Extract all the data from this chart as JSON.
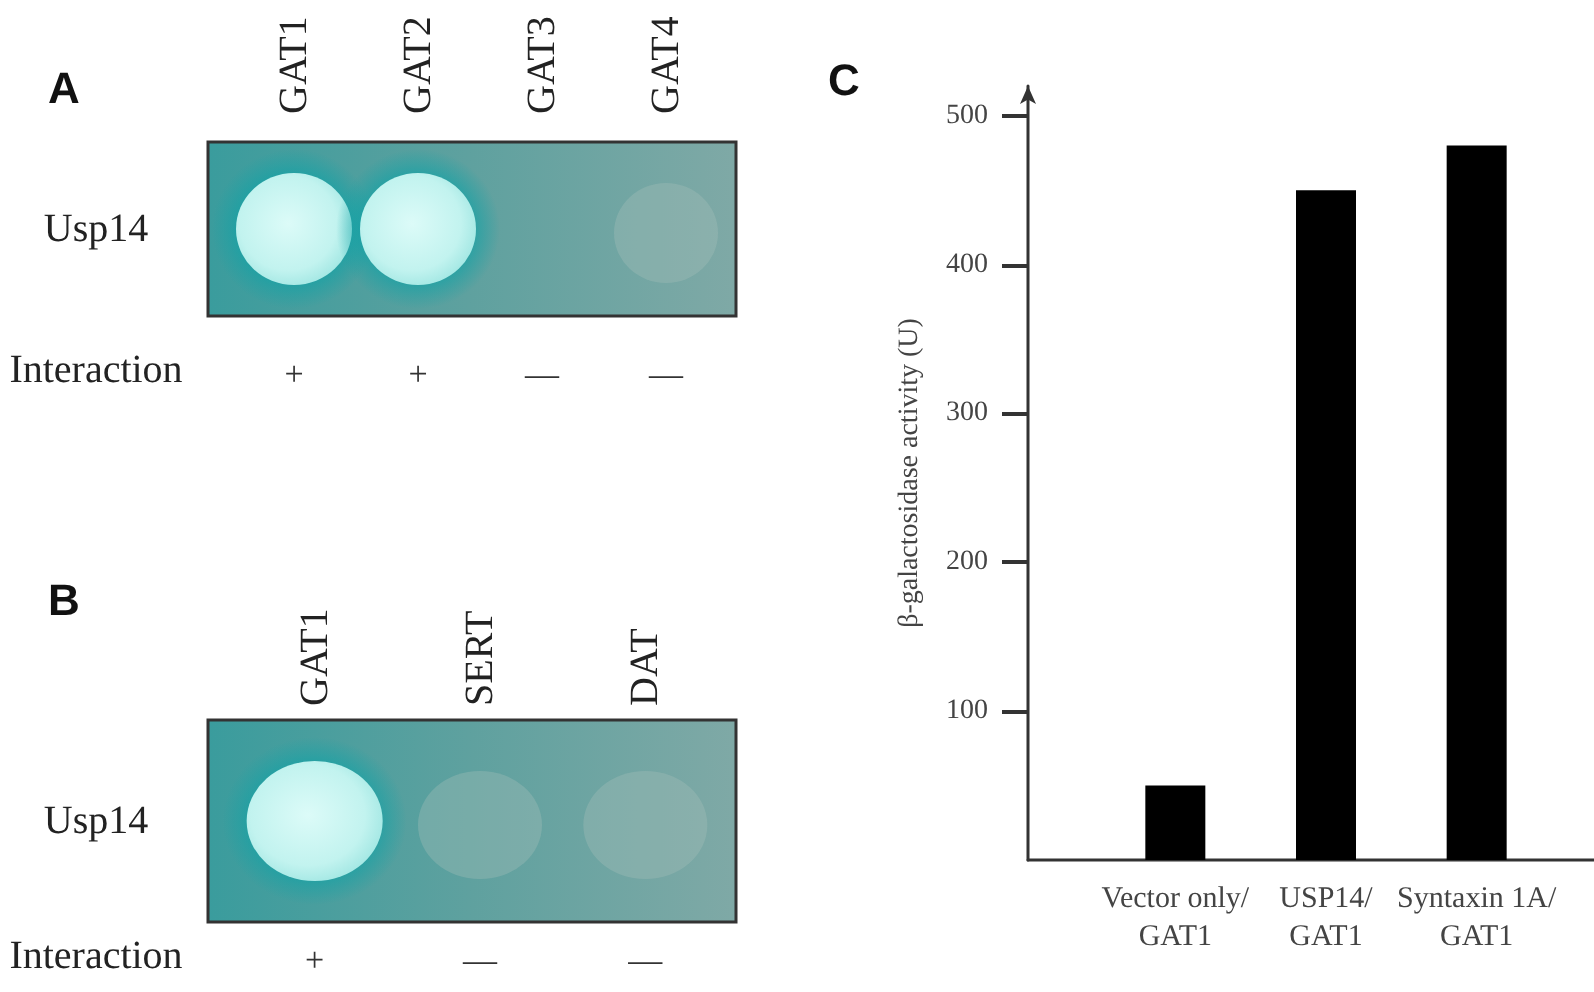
{
  "chart_data": [
    {
      "type": "other",
      "title": "A",
      "categories": [
        "GAT1",
        "GAT2",
        "GAT3",
        "GAT4"
      ],
      "y_categories": [
        "Usp14",
        "Interaction"
      ],
      "cell_labels": [
        [
          null,
          null,
          null,
          null
        ],
        [
          "+",
          "+",
          "—",
          "—"
        ]
      ]
    },
    {
      "type": "other",
      "title": "B",
      "categories": [
        "GAT1",
        "SERT",
        "DAT"
      ],
      "y_categories": [
        "Usp14",
        "Interaction"
      ],
      "cell_labels": [
        [
          null,
          null,
          null
        ],
        [
          "+",
          "—",
          "—"
        ]
      ]
    },
    {
      "type": "bar",
      "title": "C",
      "categories": [
        "Vector only/\nGAT1",
        "USP14/\nGAT1",
        "Syntaxin 1A/\nGAT1"
      ],
      "values": [
        50,
        450,
        480
      ],
      "color": "#000000",
      "ylabel": "β-galactosidase activity (U)",
      "ylim": [
        0,
        520
      ],
      "yticks": [
        100,
        200,
        300,
        400,
        500
      ]
    }
  ]
}
